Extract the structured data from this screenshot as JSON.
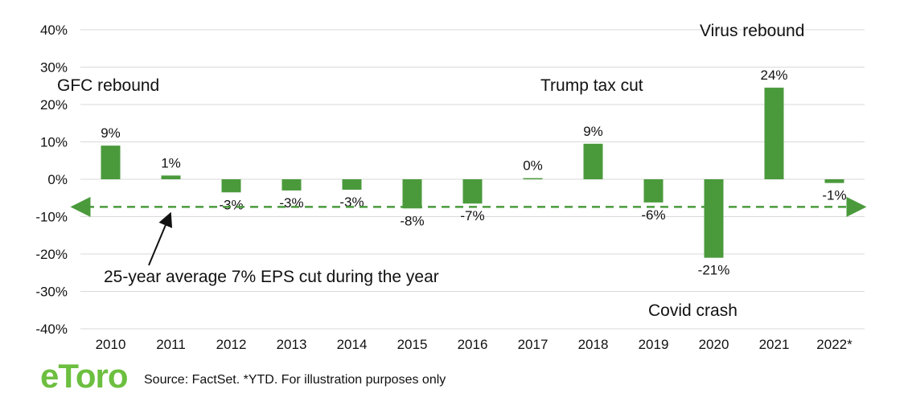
{
  "chart_data": {
    "type": "bar",
    "categories": [
      "2010",
      "2011",
      "2012",
      "2013",
      "2014",
      "2015",
      "2016",
      "2017",
      "2018",
      "2019",
      "2020",
      "2021",
      "2022*"
    ],
    "series": [
      {
        "values": [
          9,
          1,
          -3.5,
          -3,
          -2.8,
          -7.8,
          -6.5,
          0.3,
          9.5,
          -6.2,
          -21,
          24.5,
          -1
        ]
      }
    ],
    "data_labels": [
      "9%",
      "1%",
      "-3%",
      "-3%",
      "-3%",
      "-8%",
      "-7%",
      "0%",
      "9%",
      "-6%",
      "-21%",
      "24%",
      "-1%"
    ],
    "ylim": [
      -40,
      40
    ],
    "yticks": [
      -40,
      -30,
      -20,
      -10,
      0,
      10,
      20,
      30,
      40
    ],
    "ytick_labels": [
      "-40%",
      "-30%",
      "-20%",
      "-10%",
      "0%",
      "10%",
      "20%",
      "30%",
      "40%"
    ],
    "grid": true,
    "reference_line": {
      "value": -7.4,
      "style": "dashed",
      "arrows": "both"
    },
    "annotations": {
      "gfc": "GFC rebound",
      "trump": "Trump tax cut",
      "virus": "Virus rebound",
      "covid": "Covid crash",
      "average": "25-year average 7% EPS cut during the year"
    },
    "source": "Source: FactSet. *YTD. For illustration purposes only",
    "logo_text": "eToro"
  },
  "colors": {
    "bar": "#4a9a3c",
    "grid": "#d9d9d9",
    "reference": "#4a9a3c",
    "logo": "#6cbf3f"
  }
}
